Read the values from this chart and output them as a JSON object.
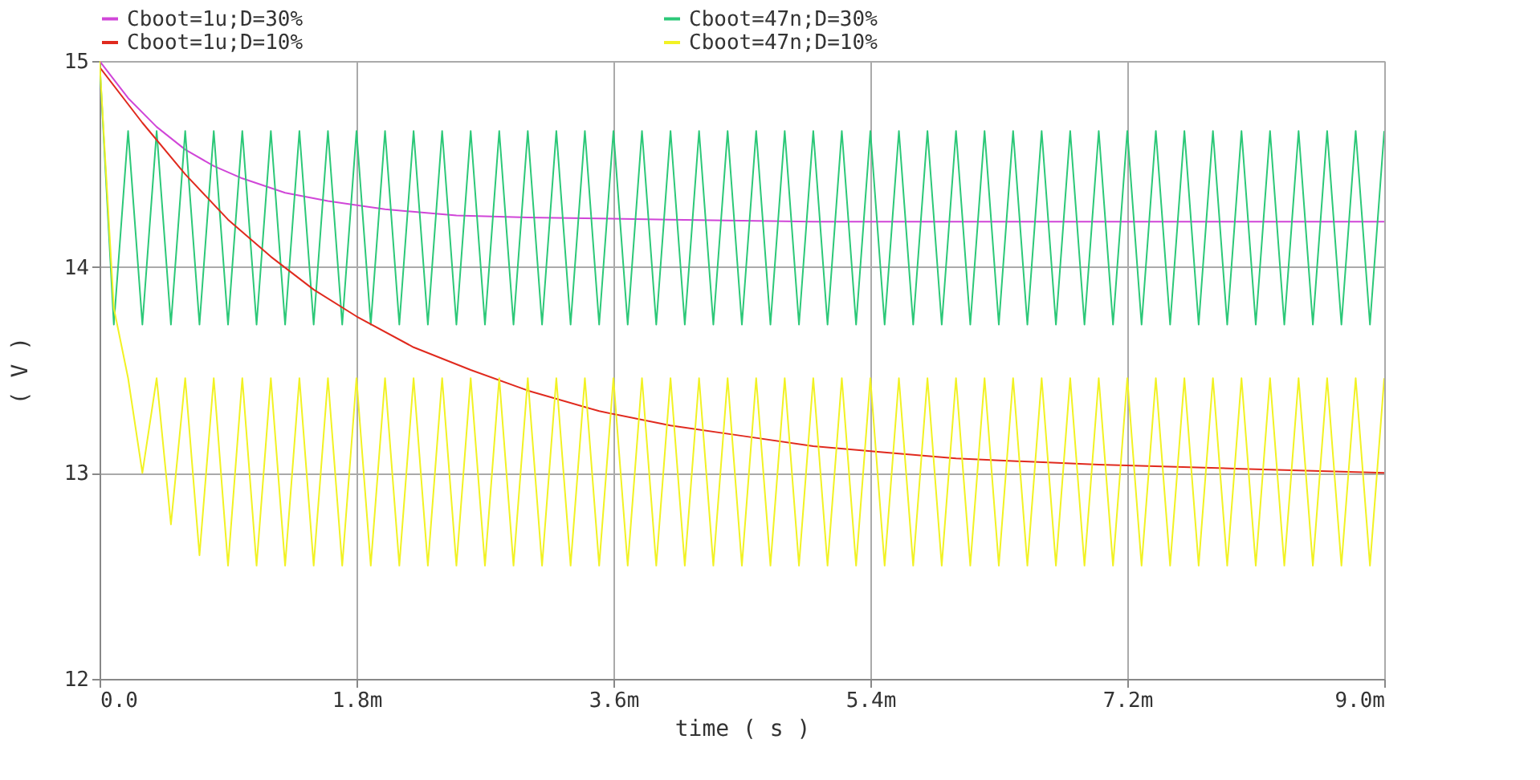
{
  "chart_data": {
    "type": "line",
    "xlabel": "time ( s )",
    "ylabel": "( V )",
    "xlim": [
      0,
      9.0
    ],
    "xticks": [
      {
        "value": 0,
        "label": "0.0"
      },
      {
        "value": 1.8,
        "label": "1.8m"
      },
      {
        "value": 3.6,
        "label": "3.6m"
      },
      {
        "value": 5.4,
        "label": "5.4m"
      },
      {
        "value": 7.2,
        "label": "7.2m"
      },
      {
        "value": 9.0,
        "label": "9.0m"
      }
    ],
    "ylim": [
      12,
      15
    ],
    "yticks": [
      12,
      13,
      14,
      15
    ],
    "grid": true,
    "legend": "top",
    "line_style": "solid",
    "x": [
      0,
      0.1,
      0.2,
      0.3,
      0.4,
      0.5,
      0.6,
      0.7,
      0.8,
      0.9,
      1.0,
      1.1,
      1.2,
      1.3,
      1.4,
      1.5,
      1.6,
      1.7,
      1.8,
      1.9,
      2.0,
      2.1,
      2.2,
      2.3,
      2.4,
      2.5,
      2.6,
      2.7,
      2.8,
      2.9,
      3.0,
      3.1,
      3.2,
      3.3,
      3.4,
      3.5,
      3.6,
      3.7,
      3.8,
      3.9,
      4.0,
      4.1,
      4.2,
      4.3,
      4.4,
      4.5,
      4.6,
      4.7,
      4.8,
      4.9,
      5.0,
      5.1,
      5.2,
      5.3,
      5.4,
      5.5,
      5.6,
      5.7,
      5.8,
      5.9,
      6.0,
      6.1,
      6.2,
      6.3,
      6.4,
      6.5,
      6.6,
      6.7,
      6.8,
      6.9,
      7.0,
      7.1,
      7.2,
      7.3,
      7.4,
      7.5,
      7.6,
      7.7,
      7.8,
      7.9,
      8.0,
      8.1,
      8.2,
      8.3,
      8.4,
      8.5,
      8.6,
      8.7,
      8.8,
      8.9,
      9.0
    ],
    "series": [
      {
        "name": "Cboot=1u;D=30%",
        "color": "#d046d8",
        "x": [
          0,
          0.2,
          0.4,
          0.6,
          0.8,
          1.0,
          1.3,
          1.6,
          2.0,
          2.5,
          3.0,
          4.0,
          5.0,
          6.0,
          7.0,
          8.0,
          9.0
        ],
        "values": [
          15,
          14.82,
          14.68,
          14.57,
          14.49,
          14.43,
          14.36,
          14.32,
          14.28,
          14.25,
          14.24,
          14.23,
          14.22,
          14.22,
          14.22,
          14.22,
          14.22
        ]
      },
      {
        "name": "Cboot=47n;D=30%",
        "color": "#2cc878",
        "values": [
          15,
          13.72,
          14.66,
          13.72,
          14.66,
          13.72,
          14.66,
          13.72,
          14.66,
          13.72,
          14.66,
          13.72,
          14.66,
          13.72,
          14.66,
          13.72,
          14.66,
          13.72,
          14.66,
          13.72,
          14.66,
          13.72,
          14.66,
          13.72,
          14.66,
          13.72,
          14.66,
          13.72,
          14.66,
          13.72,
          14.66,
          13.72,
          14.66,
          13.72,
          14.66,
          13.72,
          14.66,
          13.72,
          14.66,
          13.72,
          14.66,
          13.72,
          14.66,
          13.72,
          14.66,
          13.72,
          14.66,
          13.72,
          14.66,
          13.72,
          14.66,
          13.72,
          14.66,
          13.72,
          14.66,
          13.72,
          14.66,
          13.72,
          14.66,
          13.72,
          14.66,
          13.72,
          14.66,
          13.72,
          14.66,
          13.72,
          14.66,
          13.72,
          14.66,
          13.72,
          14.66,
          13.72,
          14.66,
          13.72,
          14.66,
          13.72,
          14.66,
          13.72,
          14.66,
          13.72,
          14.66,
          13.72,
          14.66,
          13.72,
          14.66,
          13.72,
          14.66,
          13.72,
          14.66,
          13.72,
          14.66
        ]
      },
      {
        "name": "Cboot=1u;D=10%",
        "color": "#e02a1e",
        "x": [
          0,
          0.3,
          0.6,
          0.9,
          1.2,
          1.5,
          1.8,
          2.2,
          2.6,
          3.0,
          3.5,
          4.0,
          4.5,
          5.0,
          5.5,
          6.0,
          7.0,
          8.0,
          9.0
        ],
        "values": [
          14.97,
          14.7,
          14.45,
          14.23,
          14.05,
          13.89,
          13.76,
          13.61,
          13.5,
          13.4,
          13.3,
          13.23,
          13.18,
          13.13,
          13.1,
          13.07,
          13.04,
          13.02,
          13.0
        ]
      },
      {
        "name": "Cboot=47n;D=10%",
        "color": "#f2f224",
        "values": [
          15,
          13.8,
          13.46,
          13.0,
          13.46,
          12.75,
          13.46,
          12.6,
          13.46,
          12.55,
          13.46,
          12.55,
          13.46,
          12.55,
          13.46,
          12.55,
          13.46,
          12.55,
          13.46,
          12.55,
          13.46,
          12.55,
          13.46,
          12.55,
          13.46,
          12.55,
          13.46,
          12.55,
          13.46,
          12.55,
          13.46,
          12.55,
          13.46,
          12.55,
          13.46,
          12.55,
          13.46,
          12.55,
          13.46,
          12.55,
          13.46,
          12.55,
          13.46,
          12.55,
          13.46,
          12.55,
          13.46,
          12.55,
          13.46,
          12.55,
          13.46,
          12.55,
          13.46,
          12.55,
          13.46,
          12.55,
          13.46,
          12.55,
          13.46,
          12.55,
          13.46,
          12.55,
          13.46,
          12.55,
          13.46,
          12.55,
          13.46,
          12.55,
          13.46,
          12.55,
          13.46,
          12.55,
          13.46,
          12.55,
          13.46,
          12.55,
          13.46,
          12.55,
          13.46,
          12.55,
          13.46,
          12.55,
          13.46,
          12.55,
          13.46,
          12.55,
          13.46,
          12.55,
          13.46,
          12.55,
          13.46
        ]
      }
    ]
  }
}
